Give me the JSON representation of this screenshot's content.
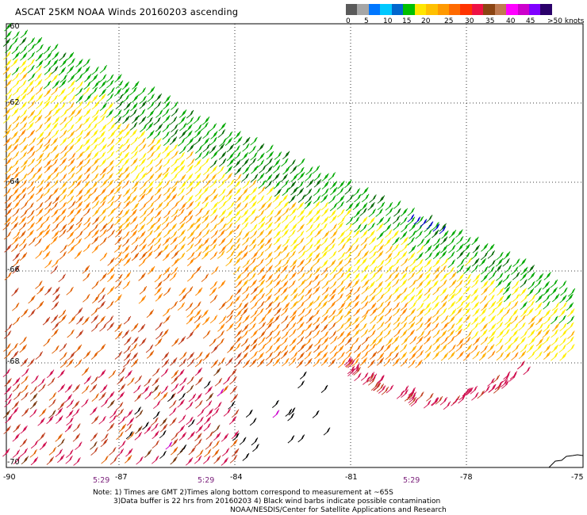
{
  "title": "ASCAT 25KM NOAA Winds 20160203 ascending",
  "legend": {
    "colors": [
      "#5a5a5a",
      "#a6a6a6",
      "#0077ff",
      "#00c8ff",
      "#0066cc",
      "#00c000",
      "#ffe600",
      "#ffc000",
      "#ff9900",
      "#ff6a00",
      "#ff3300",
      "#ee1144",
      "#8b4513",
      "#c07a50",
      "#ff00ff",
      "#cc00cc",
      "#7f00ff",
      "#2a006a"
    ],
    "labels": [
      "0",
      "5",
      "10",
      "15",
      "20",
      "25",
      "30",
      "35",
      "40",
      "45",
      ">50 knots"
    ]
  },
  "lat_labels": [
    "-60",
    "-62",
    "-64",
    "-66",
    "-68",
    "-70"
  ],
  "lon_labels": [
    "-90",
    "-87",
    "-84",
    "-81",
    "-78",
    "-75"
  ],
  "time_labels": [
    "5:29",
    "5:29",
    "5:29"
  ],
  "notes": [
    "Note: 1) Times are GMT 2)Times along bottom correspond to measurement at ~65S",
    "3)Data buffer is 22 hrs from 20160203 4) Black wind barbs indicate possible contamination",
    "NOAA/NESDIS/Center for Satellite Applications and Research"
  ],
  "wind_colors": {
    "green": "#00a800",
    "dark_green": "#006600",
    "yellow": "#ffee00",
    "light_orange": "#ffb000",
    "orange": "#ff8800",
    "dark_orange": "#e06000",
    "red_brown": "#c04020",
    "crimson": "#d01050",
    "magenta": "#cc00cc",
    "black": "#000000",
    "blue": "#0000cc",
    "brown": "#7a3a10"
  }
}
